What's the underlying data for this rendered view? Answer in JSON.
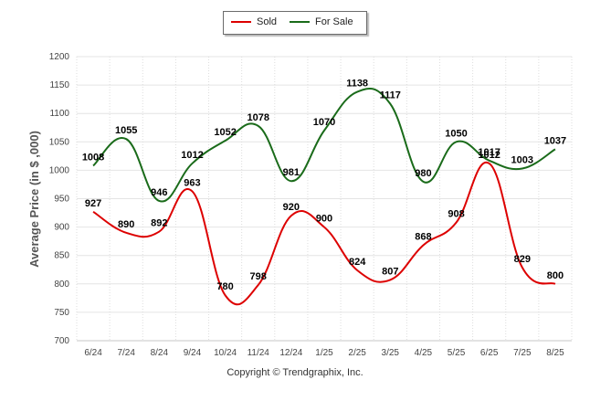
{
  "chart_data": {
    "type": "line",
    "categories": [
      "6/24",
      "7/24",
      "8/24",
      "9/24",
      "10/24",
      "11/24",
      "12/24",
      "1/25",
      "2/25",
      "3/25",
      "4/25",
      "5/25",
      "6/25",
      "7/25",
      "8/25"
    ],
    "series": [
      {
        "name": "Sold",
        "color": "#dd0000",
        "values": [
          927,
          890,
          892,
          963,
          780,
          798,
          920,
          900,
          824,
          807,
          868,
          908,
          1012,
          829,
          800
        ]
      },
      {
        "name": "For Sale",
        "color": "#1a6b1a",
        "values": [
          1008,
          1055,
          946,
          1012,
          1052,
          1078,
          981,
          1070,
          1138,
          1117,
          980,
          1050,
          1017,
          1003,
          1037
        ]
      }
    ],
    "ylabel": "Average Price (in $ ,000)",
    "ylim": [
      700,
      1200
    ],
    "yticks": [
      700,
      750,
      800,
      850,
      900,
      950,
      1000,
      1050,
      1100,
      1150,
      1200
    ],
    "grid": true,
    "legend_position": "top-center"
  },
  "legend": {
    "sold_label": "Sold",
    "for_sale_label": "For Sale"
  },
  "footer": {
    "copyright": "Copyright © Trendgraphix, Inc."
  }
}
